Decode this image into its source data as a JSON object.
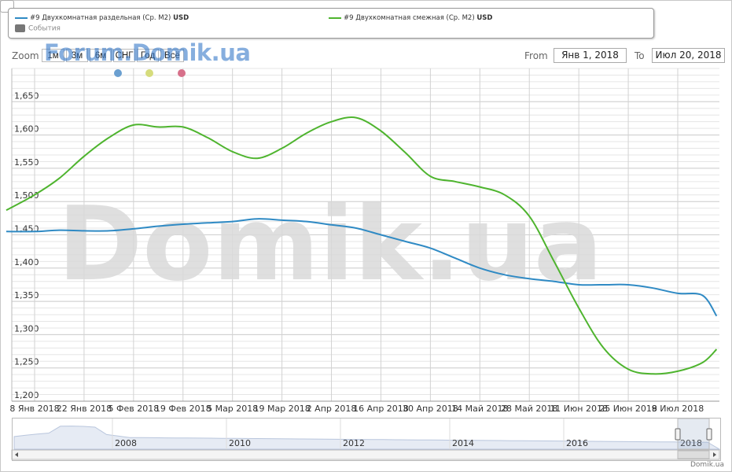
{
  "legend": {
    "series1_label": "#9 Двухкомнатная раздельная (Ср. М2)",
    "series1_unit": "USD",
    "series2_label": "#9 Двухкомнатная смежная (Ср. М2)",
    "series2_unit": "USD",
    "events_label": "События"
  },
  "toolbar": {
    "zoom_label": "Zoom",
    "buttons": [
      "1м",
      "3м",
      "6м",
      "СНГ",
      "Год",
      "Всё"
    ],
    "watermark": "Forum.Domik.ua",
    "from_label": "From",
    "from_value": "Янв 1, 2018",
    "to_label": "To",
    "to_value": "Июл 20, 2018"
  },
  "colors": {
    "series1": "#2f8ac4",
    "series2": "#4eb42e",
    "dot1": "#6a9fd0",
    "dot2": "#d6dc7c",
    "dot3": "#d7708a",
    "grid": "#d0d0d0",
    "watermark_big": "#dadada"
  },
  "watermark_big": "Domik.ua",
  "footer": "Domik.ua",
  "chart_data": {
    "type": "line",
    "x": [
      "2017-12-31",
      "2018-01-08",
      "2018-01-15",
      "2018-01-22",
      "2018-01-29",
      "2018-02-05",
      "2018-02-12",
      "2018-02-19",
      "2018-02-26",
      "2018-03-05",
      "2018-03-12",
      "2018-03-19",
      "2018-03-26",
      "2018-04-02",
      "2018-04-09",
      "2018-04-16",
      "2018-04-23",
      "2018-04-30",
      "2018-05-07",
      "2018-05-14",
      "2018-05-21",
      "2018-05-28",
      "2018-06-04",
      "2018-06-11",
      "2018-06-18",
      "2018-06-25",
      "2018-07-02",
      "2018-07-09",
      "2018-07-16",
      "2018-07-20"
    ],
    "series": [
      {
        "name": "#9 Двухкомнатная раздельная (Ср. М2)",
        "color": "#2f8ac4",
        "values": [
          1455,
          1455,
          1457,
          1456,
          1456,
          1459,
          1463,
          1466,
          1468,
          1470,
          1474,
          1472,
          1470,
          1465,
          1460,
          1450,
          1440,
          1430,
          1415,
          1400,
          1390,
          1384,
          1380,
          1375,
          1375,
          1375,
          1370,
          1362,
          1359,
          1328
        ]
      },
      {
        "name": "#9 Двухкомнатная смежная (Ср. М2)",
        "color": "#4eb42e",
        "values": [
          1487,
          1510,
          1535,
          1568,
          1596,
          1615,
          1612,
          1612,
          1596,
          1575,
          1565,
          1580,
          1603,
          1620,
          1626,
          1606,
          1573,
          1538,
          1530,
          1522,
          1510,
          1478,
          1410,
          1340,
          1280,
          1248,
          1241,
          1245,
          1258,
          1278
        ]
      }
    ],
    "x_ticks": [
      "8 Янв 2018",
      "22 Янв 2018",
      "5 Фев 2018",
      "19 Фев 2018",
      "5 Мар 2018",
      "19 Мар 2018",
      "2 Апр 2018",
      "16 Апр 2018",
      "30 Апр 2018",
      "14 Май 2018",
      "28 Май 2018",
      "11 Июн 2018",
      "25 Июн 2018",
      "9 Июл 2018"
    ],
    "y_ticks": [
      "1,200",
      "1,250",
      "1,300",
      "1,350",
      "1,400",
      "1,450",
      "1,500",
      "1,550",
      "1,600",
      "1,650"
    ],
    "ylim": [
      1200,
      1700
    ],
    "grid": true,
    "navigator": {
      "year_labels": [
        "2008",
        "2010",
        "2012",
        "2014",
        "2016",
        "2018"
      ]
    }
  }
}
